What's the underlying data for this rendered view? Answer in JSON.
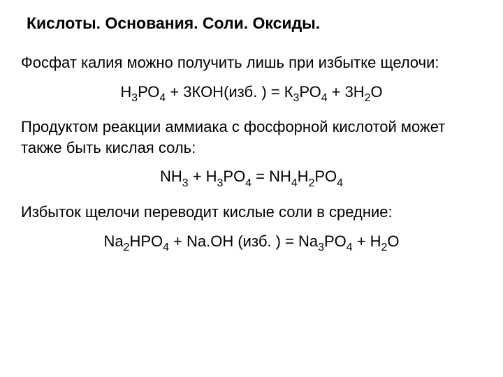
{
  "title": "Кислоты. Основания. Соли. Оксиды.",
  "para1": "Фосфат калия можно получить лишь при избытке щелочи:",
  "eq1_parts": [
    "Н",
    "3",
    "РО",
    "4",
    " + 3КОН(изб. ) = К",
    "3",
    "РО",
    "4",
    " + 3Н",
    "2",
    "О"
  ],
  "para2": "Продуктом реакции аммиака с фосфорной кислотой может также быть кислая соль:",
  "eq2_parts": [
    "NH",
    "3",
    " + H",
    "3",
    "PO",
    "4",
    " = NH",
    "4",
    "H",
    "2",
    "PO",
    "4"
  ],
  "para3": "Избыток щелочи переводит кислые соли в средние:",
  "eq3_parts": [
    "Na",
    "2",
    "HPO",
    "4",
    " + Na.OH (изб. ) = Na",
    "3",
    "PO",
    "4",
    " + H",
    "2",
    "O"
  ],
  "colors": {
    "text": "#000000",
    "background": "#ffffff"
  },
  "fontsize_title": 23,
  "fontsize_body": 22
}
